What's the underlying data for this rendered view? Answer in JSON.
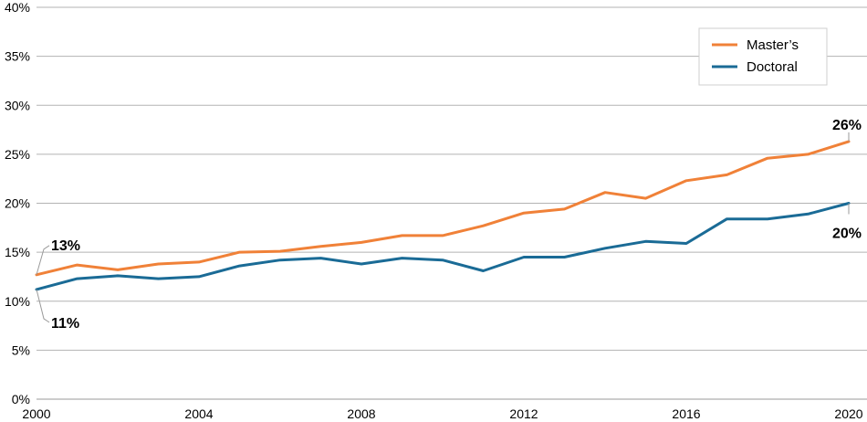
{
  "chart_data": {
    "type": "line",
    "title": "",
    "xlabel": "",
    "ylabel": "",
    "x": [
      2000,
      2001,
      2002,
      2003,
      2004,
      2005,
      2006,
      2007,
      2008,
      2009,
      2010,
      2011,
      2012,
      2013,
      2014,
      2015,
      2016,
      2017,
      2018,
      2019,
      2020
    ],
    "xlim": [
      2000,
      2020
    ],
    "xticks": [
      2000,
      2004,
      2008,
      2012,
      2016,
      2020
    ],
    "ylim": [
      0,
      40
    ],
    "yticks": [
      0,
      5,
      10,
      15,
      20,
      25,
      30,
      35,
      40
    ],
    "ytick_labels": [
      "0%",
      "5%",
      "10%",
      "15%",
      "20%",
      "25%",
      "30%",
      "35%",
      "40%"
    ],
    "grid": "horizontal",
    "legend": "top-right",
    "series": [
      {
        "name": "Master’s",
        "color": "#f08138",
        "values": [
          12.7,
          13.7,
          13.2,
          13.8,
          14.0,
          15.0,
          15.1,
          15.6,
          16.0,
          16.7,
          16.7,
          17.7,
          19.0,
          19.4,
          21.1,
          20.5,
          22.3,
          22.9,
          24.6,
          25.0,
          26.3
        ],
        "start_label": "13%",
        "end_label": "26%"
      },
      {
        "name": "Doctoral",
        "color": "#1a6b96",
        "values": [
          11.2,
          12.3,
          12.6,
          12.3,
          12.5,
          13.6,
          14.2,
          14.4,
          13.8,
          14.4,
          14.2,
          13.1,
          14.5,
          14.5,
          15.4,
          16.1,
          15.9,
          18.4,
          18.4,
          18.9,
          20.0
        ],
        "start_label": "11%",
        "end_label": "20%"
      }
    ]
  }
}
